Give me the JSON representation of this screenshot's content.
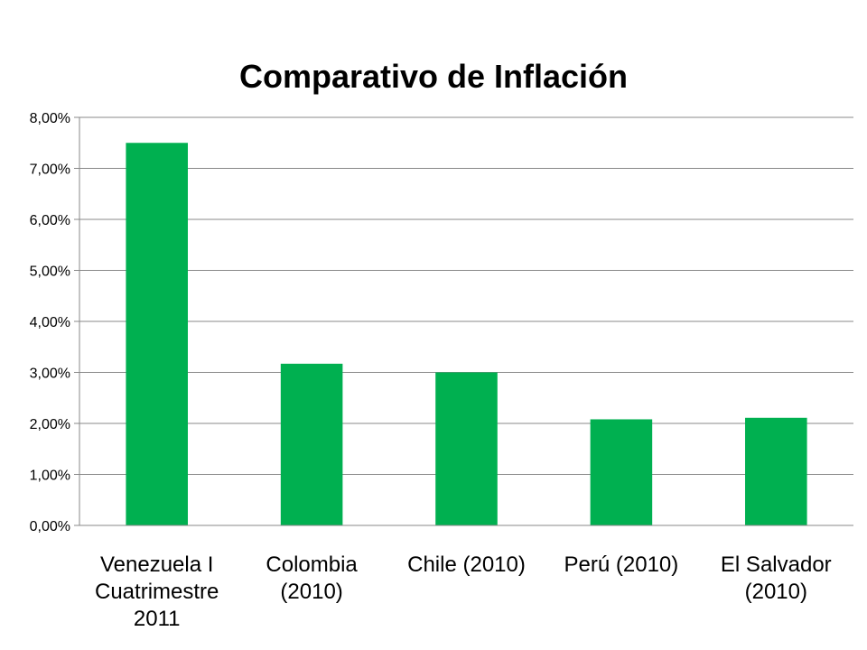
{
  "chart_data": {
    "type": "bar",
    "title": "Comparativo de Inflación",
    "xlabel": "",
    "ylabel": "",
    "ylim": [
      0,
      0.08
    ],
    "grid": true,
    "legend": "none",
    "bar_color": "#00B050",
    "y_ticks": [
      {
        "value": 0.0,
        "label": "0,00%"
      },
      {
        "value": 0.01,
        "label": "1,00%"
      },
      {
        "value": 0.02,
        "label": "2,00%"
      },
      {
        "value": 0.03,
        "label": "3,00%"
      },
      {
        "value": 0.04,
        "label": "4,00%"
      },
      {
        "value": 0.05,
        "label": "5,00%"
      },
      {
        "value": 0.06,
        "label": "6,00%"
      },
      {
        "value": 0.07,
        "label": "7,00%"
      },
      {
        "value": 0.08,
        "label": "8,00%"
      }
    ],
    "categories": [
      [
        "Venezuela I",
        "Cuatrimestre",
        "2011"
      ],
      [
        "Colombia",
        "(2010)"
      ],
      [
        "Chile (2010)"
      ],
      [
        "Perú (2010)"
      ],
      [
        "El Salvador",
        "(2010)"
      ]
    ],
    "values": [
      0.075,
      0.0317,
      0.03,
      0.0208,
      0.0211
    ]
  }
}
